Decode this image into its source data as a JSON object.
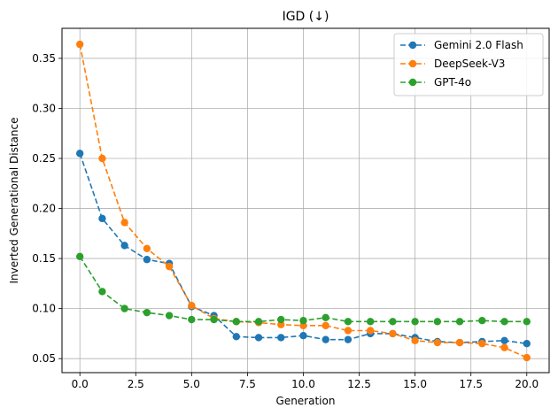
{
  "chart_data": {
    "type": "line",
    "title": "IGD (↓)",
    "xlabel": "Generation",
    "ylabel": "Inverted Generational Distance",
    "xlim": [
      -0.8,
      21.0
    ],
    "ylim": [
      0.036,
      0.38
    ],
    "xticks": [
      0.0,
      2.5,
      5.0,
      7.5,
      10.0,
      12.5,
      15.0,
      17.5,
      20.0
    ],
    "xtick_labels": [
      "0.0",
      "2.5",
      "5.0",
      "7.5",
      "10.0",
      "12.5",
      "15.0",
      "17.5",
      "20.0"
    ],
    "yticks": [
      0.05,
      0.1,
      0.15,
      0.2,
      0.25,
      0.3,
      0.35
    ],
    "ytick_labels": [
      "0.05",
      "0.10",
      "0.15",
      "0.20",
      "0.25",
      "0.30",
      "0.35"
    ],
    "grid": true,
    "legend_position": "top-right",
    "x": [
      0,
      1,
      2,
      3,
      4,
      5,
      6,
      7,
      8,
      9,
      10,
      11,
      12,
      13,
      14,
      15,
      16,
      17,
      18,
      19,
      20
    ],
    "series": [
      {
        "name": "Gemini 2.0 Flash",
        "color": "#1f77b4",
        "values": [
          0.255,
          0.19,
          0.163,
          0.149,
          0.145,
          0.102,
          0.093,
          0.072,
          0.071,
          0.071,
          0.073,
          0.069,
          0.069,
          0.075,
          0.075,
          0.071,
          0.067,
          0.066,
          0.067,
          0.068,
          0.065
        ]
      },
      {
        "name": "DeepSeek-V3",
        "color": "#ff7f0e",
        "values": [
          0.364,
          0.25,
          0.186,
          0.16,
          0.142,
          0.103,
          0.09,
          0.087,
          0.086,
          0.084,
          0.083,
          0.083,
          0.078,
          0.078,
          0.075,
          0.068,
          0.066,
          0.066,
          0.065,
          0.061,
          0.051
        ]
      },
      {
        "name": "GPT-4o",
        "color": "#2ca02c",
        "values": [
          0.152,
          0.117,
          0.1,
          0.096,
          0.093,
          0.089,
          0.089,
          0.087,
          0.087,
          0.089,
          0.088,
          0.091,
          0.087,
          0.087,
          0.087,
          0.087,
          0.087,
          0.087,
          0.088,
          0.087,
          0.087
        ]
      }
    ]
  }
}
